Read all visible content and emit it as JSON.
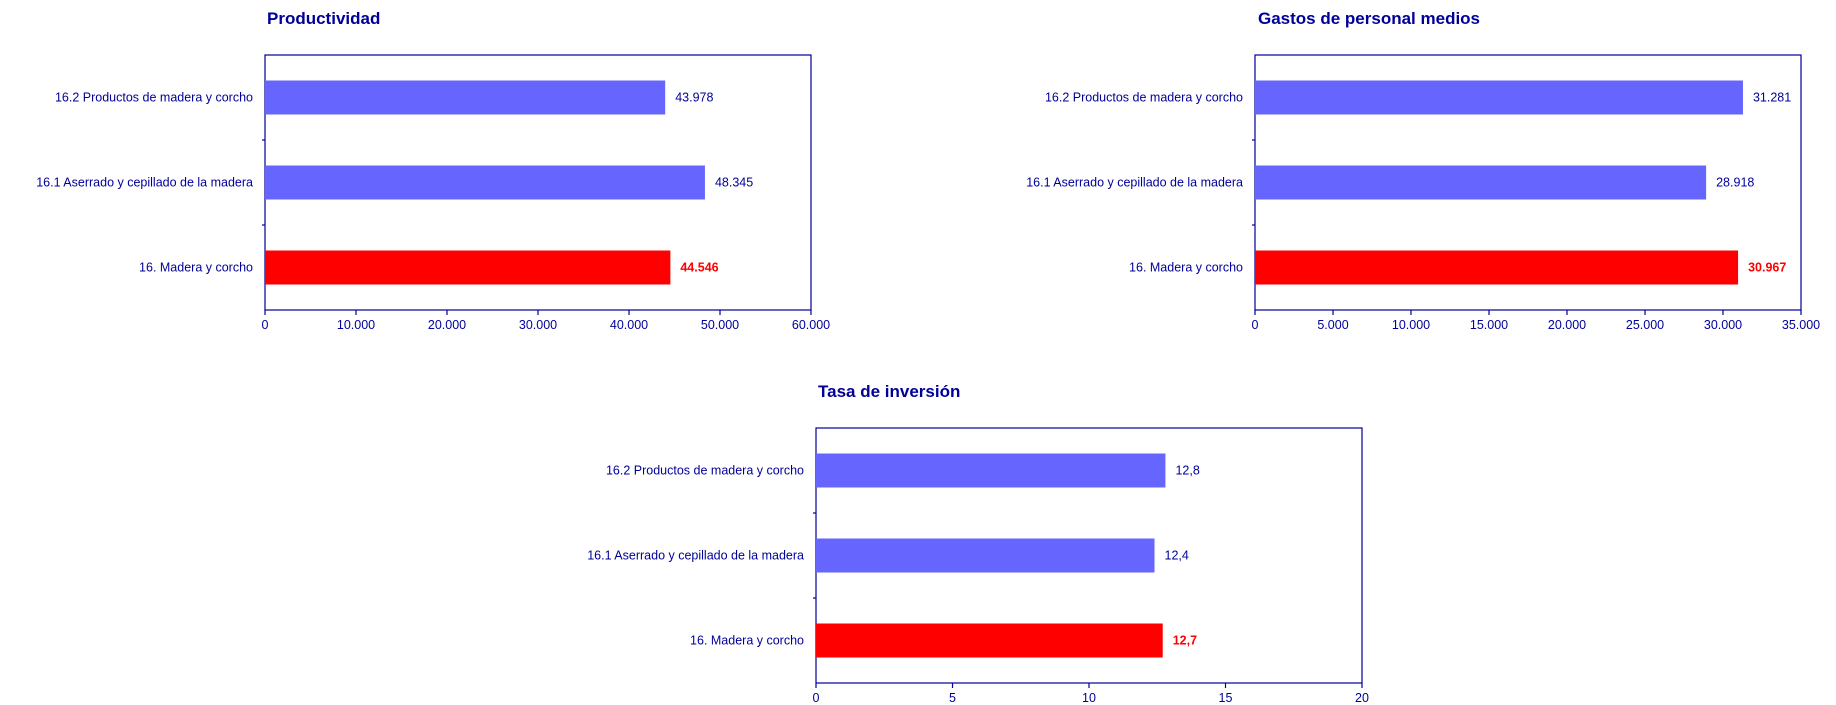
{
  "colors": {
    "normal_bar": "#6666ff",
    "highlight_bar": "#ff0000",
    "axis": "#000099",
    "text": "#000099"
  },
  "chart_data": [
    {
      "type": "bar",
      "orientation": "horizontal",
      "title": "Productividad",
      "categories": [
        "16.2 Productos de madera y corcho",
        "16.1 Aserrado y cepillado de la madera",
        "16. Madera y corcho"
      ],
      "values": [
        43978,
        48345,
        44546
      ],
      "value_labels": [
        "43.978",
        "48.345",
        "44.546"
      ],
      "highlight": [
        false,
        false,
        true
      ],
      "xlim": [
        0,
        60000
      ],
      "xticks": [
        0,
        10000,
        20000,
        30000,
        40000,
        50000,
        60000
      ],
      "xtick_labels": [
        "0",
        "10.000",
        "20.000",
        "30.000",
        "40.000",
        "50.000",
        "60.000"
      ],
      "grid": false
    },
    {
      "type": "bar",
      "orientation": "horizontal",
      "title": "Gastos de personal medios",
      "categories": [
        "16.2 Productos de madera y corcho",
        "16.1 Aserrado y cepillado de la madera",
        "16. Madera y corcho"
      ],
      "values": [
        31281,
        28918,
        30967
      ],
      "value_labels": [
        "31.281",
        "28.918",
        "30.967"
      ],
      "highlight": [
        false,
        false,
        true
      ],
      "xlim": [
        0,
        35000
      ],
      "xticks": [
        0,
        5000,
        10000,
        15000,
        20000,
        25000,
        30000,
        35000
      ],
      "xtick_labels": [
        "0",
        "5.000",
        "10.000",
        "15.000",
        "20.000",
        "25.000",
        "30.000",
        "35.000"
      ],
      "grid": false
    },
    {
      "type": "bar",
      "orientation": "horizontal",
      "title": "Tasa de inversión",
      "categories": [
        "16.2 Productos de madera y corcho",
        "16.1 Aserrado y cepillado de la madera",
        "16. Madera y corcho"
      ],
      "values": [
        12.8,
        12.4,
        12.7
      ],
      "value_labels": [
        "12,8",
        "12,4",
        "12,7"
      ],
      "highlight": [
        false,
        false,
        true
      ],
      "xlim": [
        0,
        20
      ],
      "xticks": [
        0,
        5,
        10,
        15,
        20
      ],
      "xtick_labels": [
        "0",
        "5",
        "10",
        "15",
        "20"
      ],
      "grid": false
    }
  ]
}
